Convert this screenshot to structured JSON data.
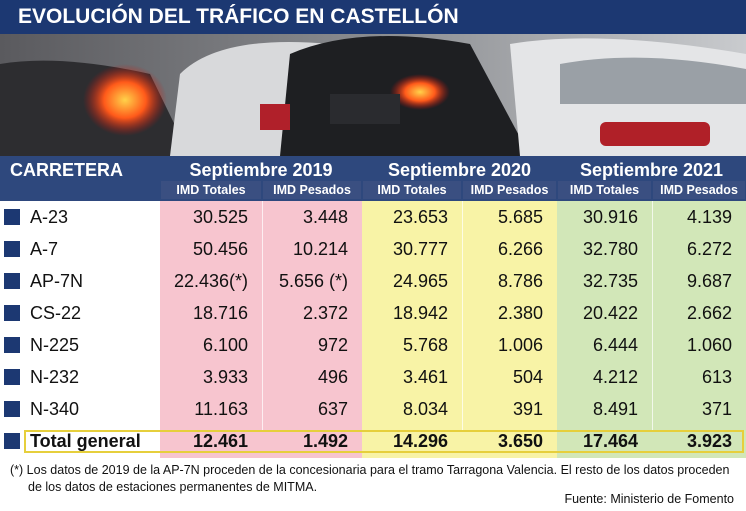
{
  "header": {
    "title": "EVOLUCIÓN DEL TRÁFICO EN CASTELLÓN"
  },
  "table": {
    "first_column": "CARRETERA",
    "periods": [
      {
        "name": "Septiembre 2019",
        "subcolumns": [
          "IMD Totales",
          "IMD Pesados"
        ]
      },
      {
        "name": "Septiembre 2020",
        "subcolumns": [
          "IMD Totales",
          "IMD Pesados"
        ]
      },
      {
        "name": "Septiembre 2021",
        "subcolumns": [
          "IMD Totales",
          "IMD Pesados"
        ]
      }
    ],
    "rows": [
      {
        "road": "A-23",
        "values": [
          "30.525",
          "3.448",
          "23.653",
          "5.685",
          "30.916",
          "4.139"
        ]
      },
      {
        "road": "A-7",
        "values": [
          "50.456",
          "10.214",
          "30.777",
          "6.266",
          "32.780",
          "6.272"
        ]
      },
      {
        "road": "AP-7N",
        "values": [
          "22.436(*)",
          "5.656 (*)",
          "24.965",
          "8.786",
          "32.735",
          "9.687"
        ]
      },
      {
        "road": "CS-22",
        "values": [
          "18.716",
          "2.372",
          "18.942",
          "2.380",
          "20.422",
          "2.662"
        ]
      },
      {
        "road": "N-225",
        "values": [
          "6.100",
          "972",
          "5.768",
          "1.006",
          "6.444",
          "1.060"
        ]
      },
      {
        "road": "N-232",
        "values": [
          "3.933",
          "496",
          "3.461",
          "504",
          "4.212",
          "613"
        ]
      },
      {
        "road": "N-340",
        "values": [
          "11.163",
          "637",
          "8.034",
          "391",
          "8.491",
          "371"
        ]
      }
    ],
    "total": {
      "road": "Total general",
      "values": [
        "12.461",
        "1.492",
        "14.296",
        "3.650",
        "17.464",
        "3.923"
      ]
    }
  },
  "footnote": "(*) Los datos de 2019 de la AP-7N proceden de la concesionaria para el tramo Tarragona Valencia. El resto de los datos proceden de los datos de estaciones permanentes de MITMA.",
  "source": "Fuente: Ministerio de Fomento"
}
